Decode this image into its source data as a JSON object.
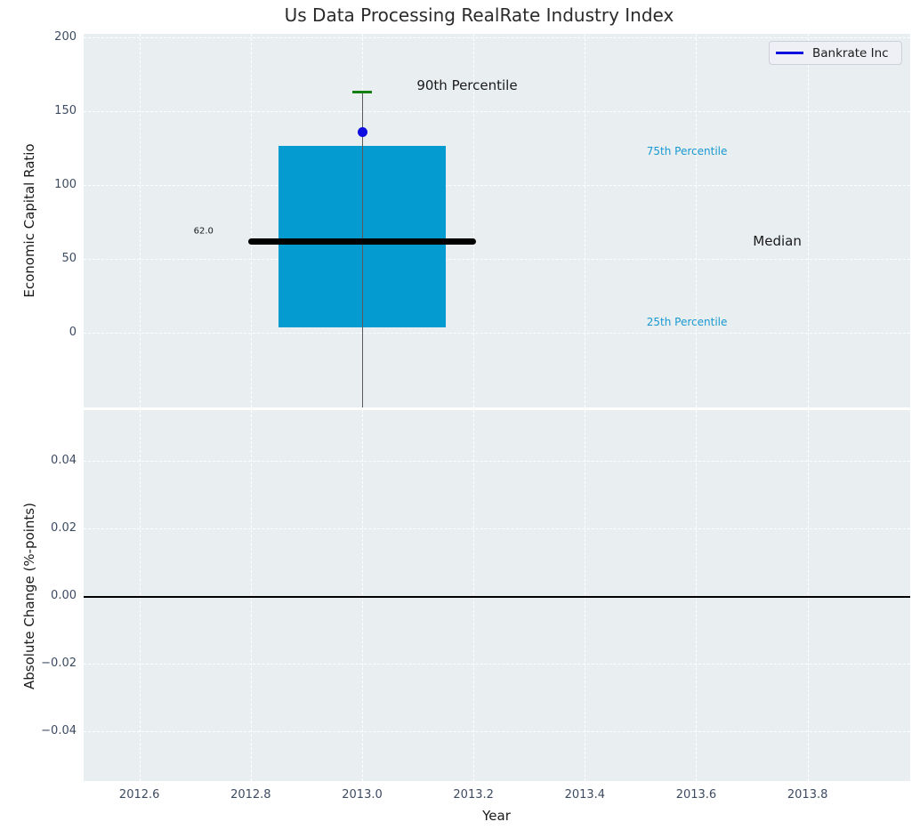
{
  "chart_data": [
    {
      "type": "box",
      "subplot": "top",
      "title": "Us Data Processing RealRate Industry Index",
      "ylabel": "Economic Capital Ratio",
      "xlabel": "",
      "xlim": [
        2012.5,
        2013.97
      ],
      "ylim": [
        -51,
        202
      ],
      "yticks": [
        0,
        50,
        100,
        150,
        200
      ],
      "xticks": [
        2012.6,
        2012.8,
        2013.0,
        2013.2,
        2013.4,
        2013.6,
        2013.8
      ],
      "grid": true,
      "legend": {
        "position": "upper right",
        "entries": [
          {
            "label": "Bankrate Inc",
            "color": "#0d0de0"
          }
        ]
      },
      "boxes": [
        {
          "x": 2013.0,
          "p25": 3.5,
          "median": 62.0,
          "p75": 126.5,
          "p90": 163.0,
          "company_value": 136.0,
          "median_label": "62.0",
          "box_halfwidth_years": 0.15,
          "median_halfwidth_years": 0.204,
          "cap_halfwidth_years": 0.018
        }
      ],
      "annotations": [
        {
          "text": "90th Percentile",
          "x": 2013.098,
          "y": 167.5,
          "color": "#1a1a1a",
          "size": 15,
          "anchor": "left"
        },
        {
          "text": "75th Percentile",
          "x": 2013.511,
          "y": 122.6,
          "color": "#1899d1",
          "size": 12,
          "anchor": "left"
        },
        {
          "text": "Median",
          "x": 2013.702,
          "y": 62.0,
          "color": "#1a1a1a",
          "size": 15,
          "anchor": "left"
        },
        {
          "text": "25th Percentile",
          "x": 2013.511,
          "y": 7.2,
          "color": "#1899d1",
          "size": 12,
          "anchor": "left"
        },
        {
          "text": "62.0",
          "x": 2012.733,
          "y": 68.7,
          "color": "#1a1a1a",
          "size": 10,
          "anchor": "right"
        }
      ],
      "colors": {
        "box_fill": "#049bd1",
        "median_line": "#000000",
        "p90_cap": "#148014",
        "company_dot": "#0d0de0",
        "whisker": "#5a5a5a"
      }
    },
    {
      "type": "line",
      "subplot": "bottom",
      "title": "",
      "ylabel": "Absolute Change (%-points)",
      "xlabel": "Year",
      "xlim": [
        2012.5,
        2013.97
      ],
      "ylim": [
        -0.055,
        0.055
      ],
      "yticks": [
        0.04,
        0.02,
        0.0,
        -0.02,
        -0.04
      ],
      "xticks": [
        2012.6,
        2012.8,
        2013.0,
        2013.2,
        2013.4,
        2013.6,
        2013.8
      ],
      "grid": true,
      "zero_line": 0.0,
      "series": []
    }
  ]
}
